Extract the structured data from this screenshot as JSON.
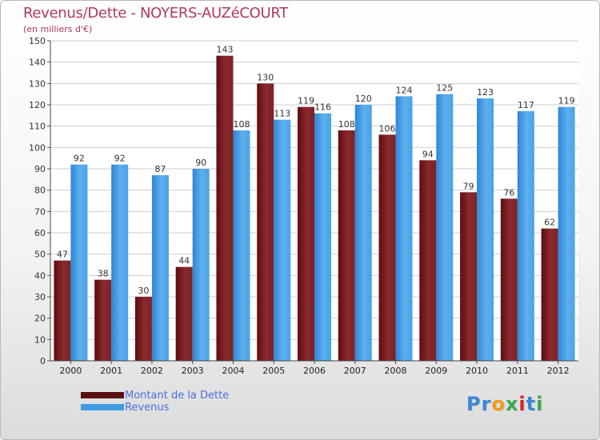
{
  "title": "Revenus/Dette - NOYERS-AUZéCOURT",
  "subtitle": "(en milliers d'€)",
  "logo": {
    "text": "Proxiti",
    "letters": [
      "P",
      "r",
      "o",
      "x",
      "i",
      "t",
      "i"
    ],
    "colors": [
      "#3a86d8",
      "#3a86d8",
      "#f29a1a",
      "#3aa84a",
      "#d8262a",
      "#3a86d8",
      "#3aa84a"
    ]
  },
  "colors": {
    "dette": "#7a1e22",
    "revenus": "#3f9ae3",
    "title": "#b03a5b",
    "legend_text": "#4a6ee0"
  },
  "legend": [
    {
      "label": "Montant de la Dette",
      "color": "#5a0f12"
    },
    {
      "label": "Revenus",
      "color": "#3f9ae3"
    }
  ],
  "chart_data": {
    "type": "bar",
    "title": "Revenus/Dette - NOYERS-AUZéCOURT",
    "ylabel": "(en milliers d'€)",
    "xlabel": "",
    "categories": [
      "2000",
      "2001",
      "2002",
      "2003",
      "2004",
      "2005",
      "2006",
      "2007",
      "2008",
      "2009",
      "2010",
      "2011",
      "2012"
    ],
    "series": [
      {
        "name": "Montant de la Dette",
        "values": [
          47,
          38,
          30,
          44,
          143,
          130,
          119,
          108,
          106,
          94,
          79,
          76,
          62
        ]
      },
      {
        "name": "Revenus",
        "values": [
          92,
          92,
          87,
          90,
          108,
          113,
          116,
          120,
          124,
          125,
          123,
          117,
          119
        ]
      }
    ],
    "ylim": [
      0,
      150
    ],
    "yticks": [
      0,
      10,
      20,
      30,
      40,
      50,
      60,
      70,
      80,
      90,
      100,
      110,
      120,
      130,
      140,
      150
    ],
    "grid": true
  }
}
